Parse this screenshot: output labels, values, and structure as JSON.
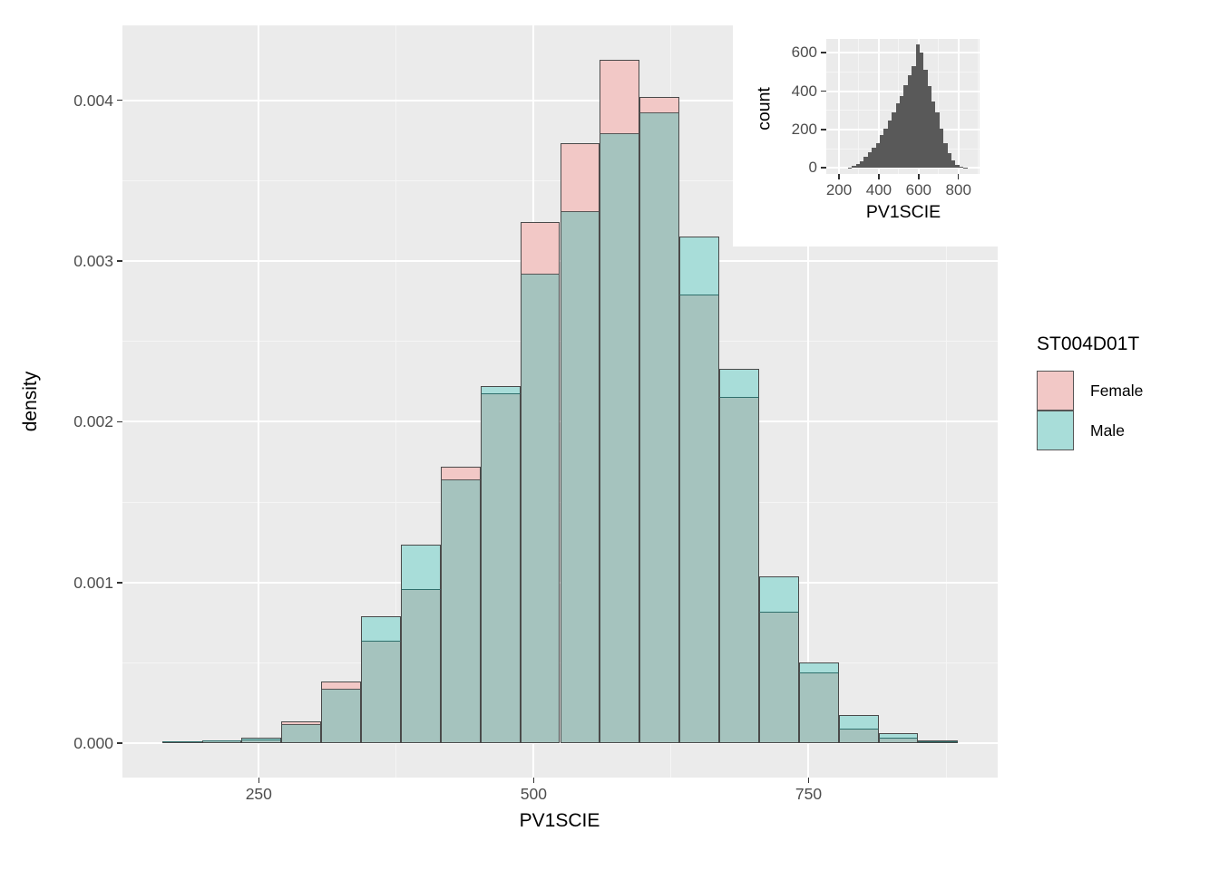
{
  "chart_data": [
    {
      "type": "histogram",
      "title": "",
      "xlabel": "PV1SCIE",
      "ylabel": "density",
      "legend_title": "ST004D01T",
      "legend_position": "right",
      "grid": true,
      "position": "identity-overlaid",
      "xlim": [
        126,
        922
      ],
      "ylim": [
        -0.000213,
        0.004465
      ],
      "x_ticks": [
        250,
        500,
        750
      ],
      "x_tick_labels": [
        "250",
        "500",
        "750"
      ],
      "x_minor": [
        375,
        625,
        875
      ],
      "y_ticks": [
        0,
        0.001,
        0.002,
        0.003,
        0.004
      ],
      "y_tick_labels": [
        "0.000",
        "0.001",
        "0.002",
        "0.003",
        "0.004"
      ],
      "y_minor": [
        0.0005,
        0.0015,
        0.0025,
        0.0035
      ],
      "bin_start": 162,
      "bin_width": 36.2,
      "overlap_fill": "#A5C3BE",
      "outline_color": "#4A4A4A",
      "inner_line_pink_cap": "#555555",
      "inner_line_teal_cap": "#2F6F6C",
      "series": [
        {
          "name": "Female",
          "fill": "#F2C8C6",
          "values": [
            1.5e-05,
            2e-05,
            2.4e-05,
            0.000135,
            0.000385,
            0.000637,
            0.00096,
            0.001721,
            0.002179,
            0.00324,
            0.003735,
            0.004252,
            0.004021,
            0.002789,
            0.002154,
            0.000819,
            0.00044,
            9.24e-05,
            3.6e-05,
            1e-05
          ]
        },
        {
          "name": "Male",
          "fill": "#A8DDD9",
          "values": [
            1.9e-05,
            2.25e-05,
            3.6e-05,
            0.00012,
            0.00034,
            0.000793,
            0.001234,
            0.001642,
            0.00222,
            0.00292,
            0.003307,
            0.003792,
            0.003924,
            0.003153,
            0.002331,
            0.001041,
            0.000505,
            0.000175,
            6.42e-05,
            1.69e-05
          ]
        }
      ]
    },
    {
      "type": "histogram",
      "title": "",
      "xlabel": "PV1SCIE",
      "ylabel": "count",
      "grid": true,
      "fill": "#595959",
      "xlim": [
        136,
        906
      ],
      "ylim": [
        -32,
        672
      ],
      "x_ticks": [
        200,
        400,
        600,
        800
      ],
      "x_tick_labels": [
        "200",
        "400",
        "600",
        "800"
      ],
      "x_minor": [
        300,
        500,
        700,
        900
      ],
      "y_ticks": [
        0,
        200,
        400,
        600
      ],
      "y_tick_labels": [
        "0",
        "200",
        "400",
        "600"
      ],
      "y_minor": [
        100,
        300,
        500
      ],
      "bin_start": 245,
      "bin_width": 20,
      "values": [
        3,
        10,
        18,
        34,
        58,
        81,
        105,
        131,
        169,
        202,
        247,
        287,
        335,
        373,
        432,
        481,
        532,
        645,
        602,
        513,
        424,
        347,
        287,
        203,
        129,
        77,
        40,
        13,
        5,
        2
      ]
    }
  ],
  "legend": {
    "title": "ST004D01T",
    "items": [
      {
        "label": "Female",
        "color": "#F2C8C6"
      },
      {
        "label": "Male",
        "color": "#A8DDD9"
      }
    ]
  },
  "colors": {
    "panel_background": "#EBEBEB",
    "grid_major": "#FFFFFF",
    "grid_minor": "#F5F5F5",
    "bar_outline": "#4A4A4A",
    "overlap_fill": "#A5C3BE",
    "inset_bar_fill": "#595959",
    "tick_label": "#4D4D4D"
  }
}
